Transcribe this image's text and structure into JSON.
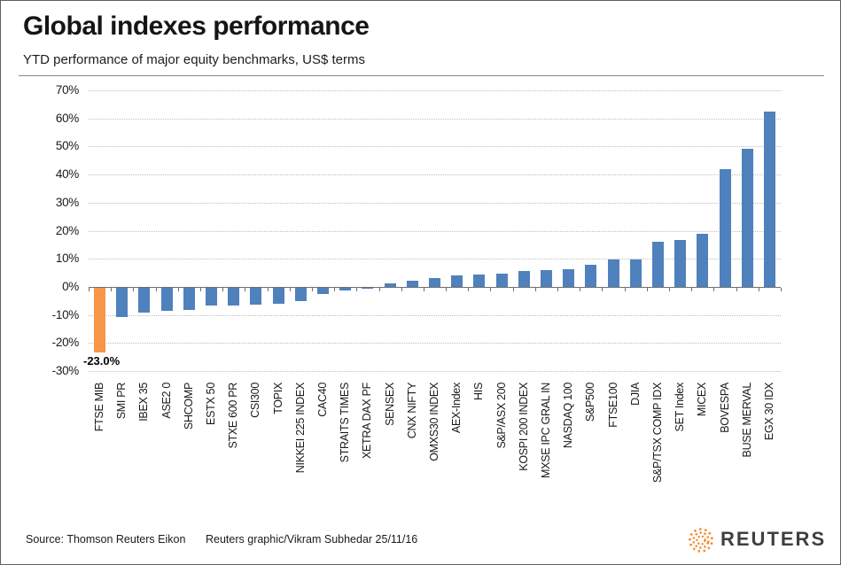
{
  "header": {
    "title": "Global indexes performance",
    "subtitle": "YTD performance of major equity benchmarks, US$ terms"
  },
  "chart_data": {
    "type": "bar",
    "title": "Global indexes performance",
    "subtitle": "YTD performance of major equity benchmarks, US$ terms",
    "categories": [
      "FTSE MIB",
      "SMI PR",
      "IBEX 35",
      "ASE2 0",
      "SHCOMP",
      "ESTX 50",
      "STXE 600 PR",
      "CSI300",
      "TOPIX",
      "NIKKEI 225 INDEX",
      "CAC40",
      "STRAITS TIMES",
      "XETRA DAX PF",
      "SENSEX",
      "CNX NIFTY",
      "OMXS30 INDEX",
      "AEX-Index",
      "HIS",
      "S&P/ASX 200",
      "KOSPI 200 INDEX",
      "MXSE IPC GRAL IN",
      "NASDAQ 100",
      "S&P500",
      "FTSE100",
      "DJIA",
      "S&P/TSX COMP IDX",
      "SET Index",
      "MICEX",
      "BOVESPA",
      "BUSE MERVAL",
      "EGX 30 IDX"
    ],
    "values": [
      -23.0,
      -10.4,
      -8.9,
      -8.3,
      -7.9,
      -6.5,
      -6.2,
      -6.0,
      -5.6,
      -4.9,
      -2.2,
      -1.0,
      -0.5,
      1.2,
      2.2,
      3.0,
      4.2,
      4.3,
      4.7,
      5.6,
      6.1,
      6.3,
      8.0,
      9.8,
      9.9,
      15.9,
      16.8,
      19.0,
      41.9,
      49.2,
      62.4
    ],
    "xlabel": "",
    "ylabel": "",
    "ylim": [
      -30,
      70
    ],
    "ytick_step": 10,
    "ytick_labels": [
      "70%",
      "60%",
      "50%",
      "40%",
      "30%",
      "20%",
      "10%",
      "0%",
      "-10%",
      "-20%",
      "-30%"
    ],
    "grid": "horizontal-dotted",
    "legend": "none",
    "bar_color": "#4f81bd",
    "highlight_color": "#f79646",
    "highlight_index": 0,
    "data_labels": [
      {
        "index": 0,
        "text": "-23.0%"
      }
    ]
  },
  "footer": {
    "source": "Source: Thomson Reuters Eikon",
    "credit": "Reuters graphic/Vikram Subhedar 25/11/16",
    "brand": "REUTERS",
    "brand_color": "#f58220"
  }
}
